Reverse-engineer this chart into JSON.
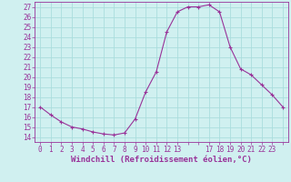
{
  "hours": [
    0,
    1,
    2,
    3,
    4,
    5,
    6,
    7,
    8,
    9,
    10,
    11,
    12,
    13,
    14,
    15,
    16,
    17,
    18,
    19,
    20,
    21,
    22,
    23
  ],
  "values": [
    17.0,
    16.2,
    15.5,
    15.0,
    14.8,
    14.5,
    14.3,
    14.2,
    14.4,
    15.8,
    18.5,
    20.5,
    24.5,
    26.5,
    27.0,
    27.0,
    27.2,
    26.5,
    23.0,
    20.8,
    20.2,
    19.2,
    18.2,
    17.0
  ],
  "line_color": "#993399",
  "marker": "+",
  "bg_color": "#d0f0f0",
  "grid_color": "#aadddd",
  "xlabel": "Windchill (Refroidissement éolien,°C)",
  "ylim": [
    13.5,
    27.5
  ],
  "xlim": [
    -0.5,
    23.5
  ],
  "yticks": [
    14,
    15,
    16,
    17,
    18,
    19,
    20,
    21,
    22,
    23,
    24,
    25,
    26,
    27
  ],
  "xticks": [
    0,
    1,
    2,
    3,
    4,
    5,
    6,
    7,
    8,
    9,
    10,
    11,
    12,
    13,
    14,
    15,
    16,
    17,
    18,
    19,
    20,
    21,
    22,
    23
  ],
  "xtick_labels": [
    "0",
    "1",
    "2",
    "3",
    "4",
    "5",
    "6",
    "7",
    "8",
    "9",
    "10",
    "11",
    "12",
    "13",
    "",
    "",
    "17",
    "18",
    "19",
    "20",
    "21",
    "22",
    "23",
    ""
  ],
  "font_color": "#993399",
  "tick_fontsize": 5.5,
  "label_fontsize": 6.5
}
